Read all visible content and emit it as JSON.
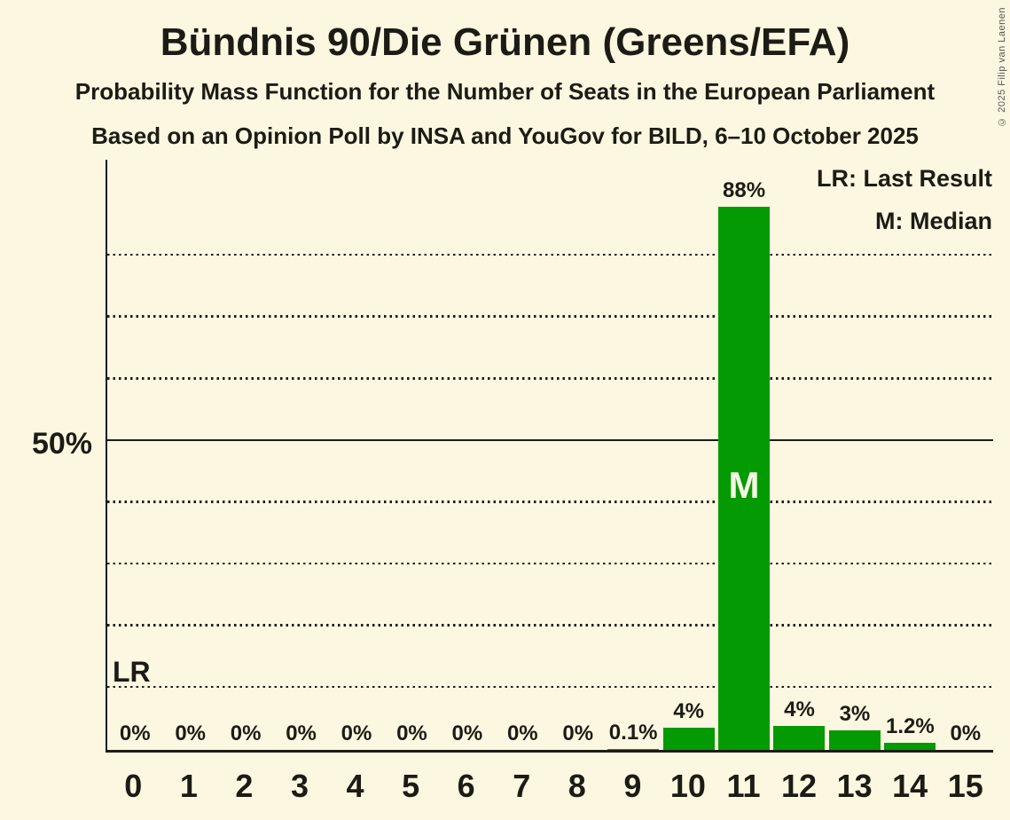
{
  "header": {
    "title": "Bündnis 90/Die Grünen (Greens/EFA)",
    "subtitle": "Probability Mass Function for the Number of Seats in the European Parliament",
    "poll_details": "Based on an Opinion Poll by INSA and YouGov for BILD, 6–10 October 2025"
  },
  "legend": {
    "last_result": "LR: Last Result",
    "median": "M: Median"
  },
  "copyright": "© 2025 Filip van Laenen",
  "colors": {
    "background": "#FCF7E1",
    "bar": "#049A04",
    "text": "#1C1C14",
    "median_label": "#F6F5E3",
    "copyright_text": "#56564E"
  },
  "y_axis": {
    "fifty_percent_label": "50%"
  },
  "lr_marker": {
    "label": "LR",
    "line_pct": 10
  },
  "chart_data": {
    "type": "bar",
    "title": "Bündnis 90/Die Grünen (Greens/EFA)",
    "subtitle": "Probability Mass Function for the Number of Seats in the European Parliament",
    "source": "Based on an Opinion Poll by INSA and YouGov for BILD, 6–10 October 2025",
    "categories": [
      "0",
      "1",
      "2",
      "3",
      "4",
      "5",
      "6",
      "7",
      "8",
      "9",
      "10",
      "11",
      "12",
      "13",
      "14",
      "15"
    ],
    "values": [
      0,
      0,
      0,
      0,
      0,
      0,
      0,
      0,
      0,
      0.1,
      3.6,
      88,
      3.9,
      3.1,
      1.2,
      0
    ],
    "bar_labels": [
      "0%",
      "0%",
      "0%",
      "0%",
      "0%",
      "0%",
      "0%",
      "0%",
      "0%",
      "0.1%",
      "4%",
      "88%",
      "4%",
      "3%",
      "1.2%",
      "0%"
    ],
    "median_seat_index": 11,
    "median_marker": "M",
    "ylim": [
      0,
      96
    ],
    "ytick_solid_pct": 50,
    "ytick_solid_label": "50%",
    "gridlines_pct": [
      10,
      20,
      30,
      40,
      60,
      70,
      80
    ],
    "grid_style": "dotted",
    "legend_entries": [
      "LR: Last Result",
      "M: Median"
    ],
    "legend_position": "top-right",
    "bar_color": "#049A04"
  }
}
